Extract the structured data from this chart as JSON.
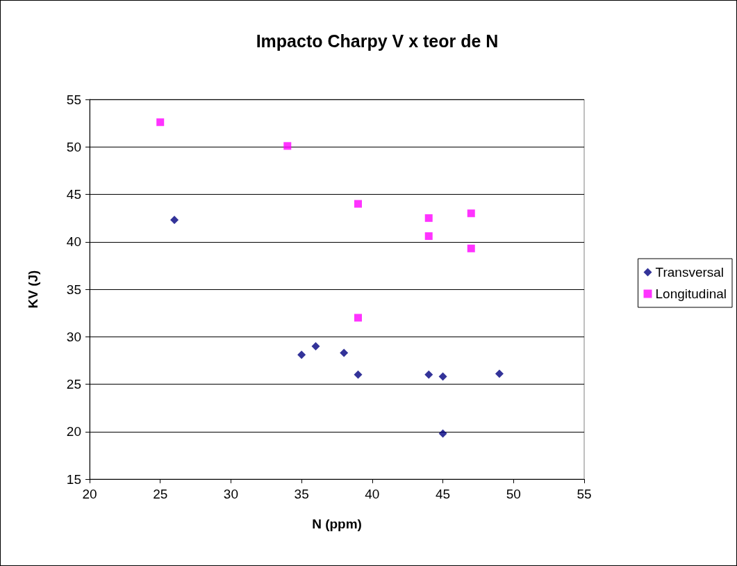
{
  "chart_data": {
    "type": "scatter",
    "title": "Impacto Charpy V x teor de N",
    "xlabel": "N (ppm)",
    "ylabel": "KV (J)",
    "series": [
      {
        "name": "Transversal",
        "color": "#000080",
        "marker": "diamond",
        "x": [
          26,
          35,
          36,
          38,
          39,
          44,
          45,
          45,
          49
        ],
        "values": [
          42.3,
          28.1,
          29.0,
          28.3,
          26.0,
          26.0,
          25.8,
          19.8,
          26.1
        ]
      },
      {
        "name": "Longitudinal",
        "color": "#ff00ff",
        "marker": "square",
        "x": [
          25,
          34,
          39,
          39,
          44,
          44,
          47,
          47
        ],
        "values": [
          52.6,
          50.1,
          44.0,
          32.0,
          42.5,
          40.6,
          43.0,
          39.3
        ]
      }
    ],
    "xlim": [
      20,
      55
    ],
    "xticks": [
      20,
      25,
      30,
      35,
      40,
      45,
      50,
      55
    ],
    "ylim": [
      15,
      55
    ],
    "yticks": [
      15,
      20,
      25,
      30,
      35,
      40,
      45,
      50,
      55
    ],
    "grid": "y",
    "legend": "right"
  }
}
